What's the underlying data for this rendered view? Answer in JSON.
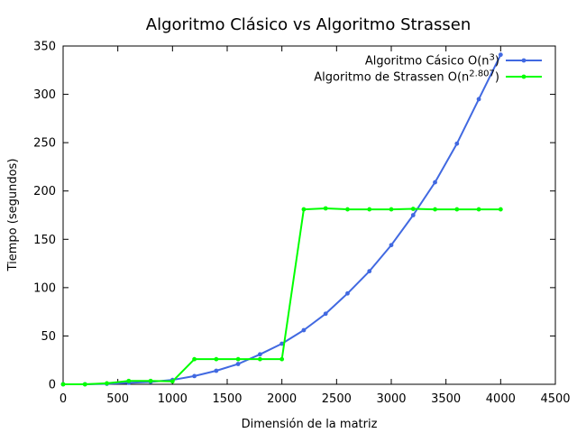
{
  "chart_data": {
    "type": "line",
    "title": "Algoritmo Clásico vs Algoritmo Strassen",
    "xlabel": "Dimensión de la matriz",
    "ylabel": "Tiempo (segundos)",
    "xlim": [
      0,
      4500
    ],
    "ylim": [
      0,
      350
    ],
    "xticks": [
      0,
      500,
      1000,
      1500,
      2000,
      2500,
      3000,
      3500,
      4000,
      4500
    ],
    "yticks": [
      0,
      50,
      100,
      150,
      200,
      250,
      300,
      350
    ],
    "grid": false,
    "legend_position": "top-right",
    "series": [
      {
        "name": "Algoritmo Cásico O(n",
        "name_sup": "3",
        "name_suffix": ")",
        "color": "#4169e1",
        "x": [
          0,
          200,
          400,
          600,
          800,
          1000,
          1200,
          1400,
          1600,
          1800,
          2000,
          2200,
          2400,
          2600,
          2800,
          3000,
          3200,
          3400,
          3600,
          3800,
          4000
        ],
        "y": [
          0,
          0,
          0.5,
          1.5,
          2.5,
          4.5,
          8.5,
          14,
          21,
          31,
          42,
          56,
          73,
          94,
          117,
          144,
          175,
          209,
          249,
          295,
          341
        ]
      },
      {
        "name": "Algoritmo de Strassen O(n",
        "name_sup": "2.807",
        "name_suffix": ")",
        "color": "#00ff00",
        "x": [
          0,
          200,
          400,
          600,
          800,
          1000,
          1200,
          1400,
          1600,
          1800,
          2000,
          2200,
          2400,
          2600,
          2800,
          3000,
          3200,
          3400,
          3600,
          3800,
          4000
        ],
        "y": [
          0,
          0,
          1,
          3.5,
          3.5,
          3,
          26,
          26,
          26,
          26,
          26,
          181,
          182,
          181,
          181,
          181,
          181.5,
          181,
          181,
          181,
          181
        ]
      }
    ]
  }
}
